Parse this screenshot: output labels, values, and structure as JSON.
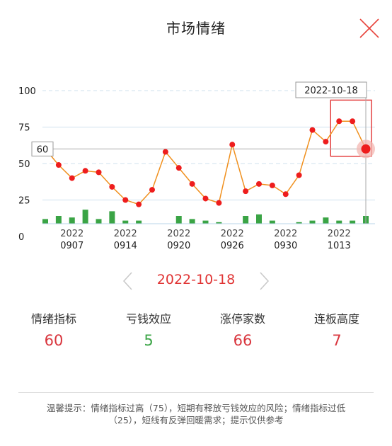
{
  "header": {
    "title": "市场情绪",
    "close_icon": "close-icon"
  },
  "chart_data": {
    "type": "line",
    "series": [
      {
        "values": [
          60,
          49,
          40,
          45,
          44,
          34,
          25,
          22,
          32,
          58,
          47,
          36,
          26,
          23,
          63,
          31,
          36,
          35,
          29,
          42,
          73,
          65,
          79,
          79,
          60
        ],
        "color": "#f0901e",
        "marker_color": "#ee1d1d"
      }
    ],
    "bars": [
      3,
      5,
      4,
      9,
      3,
      8,
      2,
      2,
      0,
      0,
      5,
      3,
      2,
      1,
      0,
      5,
      6,
      2,
      0,
      1,
      2,
      4,
      2,
      2,
      5
    ],
    "bar_color": "#3aa445",
    "ylim": [
      0,
      100
    ],
    "yticks": [
      0,
      25,
      50,
      75,
      100
    ],
    "x_tick_labels": [
      {
        "index": 2,
        "year": "2022",
        "day": "0907"
      },
      {
        "index": 6,
        "year": "2022",
        "day": "0914"
      },
      {
        "index": 10,
        "year": "2022",
        "day": "0920"
      },
      {
        "index": 14,
        "year": "2022",
        "day": "0926"
      },
      {
        "index": 18,
        "year": "2022",
        "day": "0930"
      },
      {
        "index": 22,
        "year": "2022",
        "day": "1013"
      }
    ],
    "crosshair": {
      "index": 24,
      "value_label": "60",
      "date_label": "2022-10-18"
    },
    "highlight": {
      "from_index": 22,
      "to_index": 24
    },
    "grid": true
  },
  "date_nav": {
    "date": "2022-10-18",
    "prev_icon": "chevron-left-icon",
    "next_icon": "chevron-right-icon"
  },
  "stats": [
    {
      "label": "情绪指标",
      "value": "60",
      "color": "#d9363e"
    },
    {
      "label": "亏钱效应",
      "value": "5",
      "color": "#3aa445"
    },
    {
      "label": "涨停家数",
      "value": "66",
      "color": "#d9363e"
    },
    {
      "label": "连板高度",
      "value": "7",
      "color": "#d9363e"
    }
  ],
  "tip": {
    "line1": "温馨提示：情绪指标过高（75），短期有释放亏钱效应的风险；情绪指标过低",
    "line2": "（25），短线有反弹回暖需求；提示仅供参考"
  }
}
